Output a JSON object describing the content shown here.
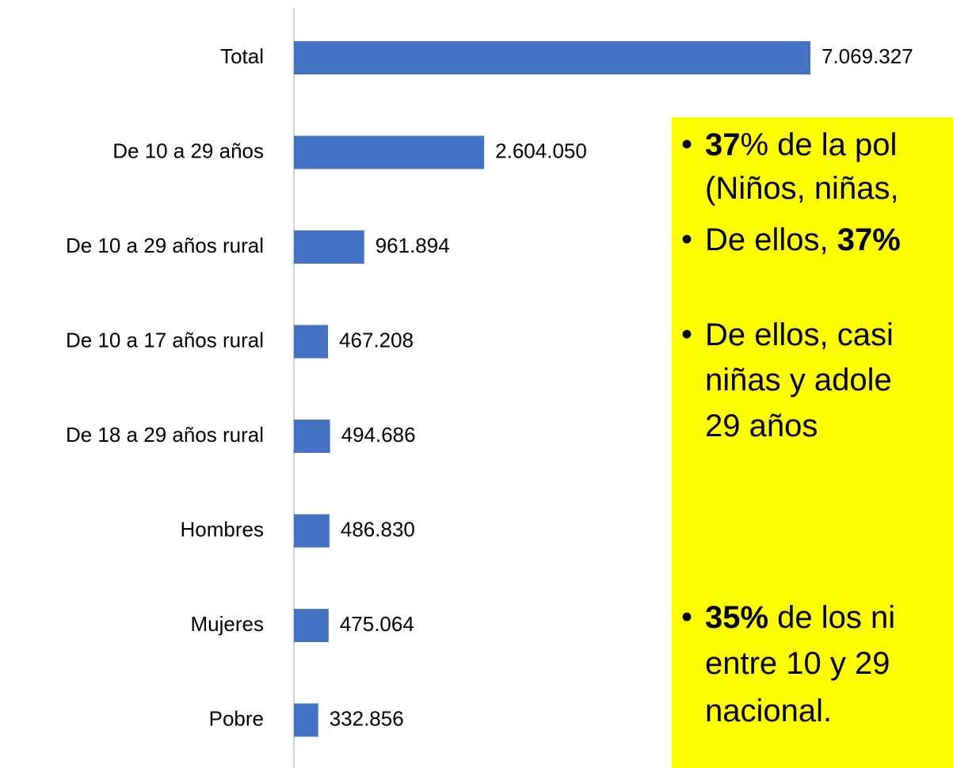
{
  "chart_data": {
    "type": "bar",
    "orientation": "horizontal",
    "categories": [
      "Total",
      "De 10 a 29 años",
      "De 10 a 29 años rural",
      "De 10 a 17 años rural",
      "De 18 a 29 años rural",
      "Hombres",
      "Mujeres",
      "Pobre"
    ],
    "values": [
      7069327,
      2604050,
      961894,
      467208,
      494686,
      486830,
      475064,
      332856
    ],
    "value_labels": [
      "7.069.327",
      "2.604.050",
      "961.894",
      "467.208",
      "494.686",
      "486.830",
      "475.064",
      "332.856"
    ],
    "color": "#4472c4"
  },
  "text_box": {
    "color": "#ffff00",
    "bullets": [
      {
        "lines": [
          [
            {
              "text": "37",
              "bold": true
            },
            {
              "text": "% de la pol"
            }
          ],
          [
            {
              "text": "(Niños, niñas,"
            }
          ]
        ]
      },
      {
        "lines": [
          [
            {
              "text": "De ellos, "
            },
            {
              "text": "37%",
              "bold": true
            }
          ]
        ]
      },
      {
        "lines": [
          [
            {
              "text": "De ellos, casi"
            }
          ],
          [
            {
              "text": "niñas y adole"
            }
          ],
          [
            {
              "text": "29 años"
            }
          ]
        ]
      },
      {
        "lines": [
          [
            {
              "text": "35%",
              "bold": true
            },
            {
              "text": " de los ni"
            }
          ],
          [
            {
              "text": "entre 10 y 29"
            }
          ],
          [
            {
              "text": "nacional."
            }
          ]
        ]
      }
    ]
  }
}
